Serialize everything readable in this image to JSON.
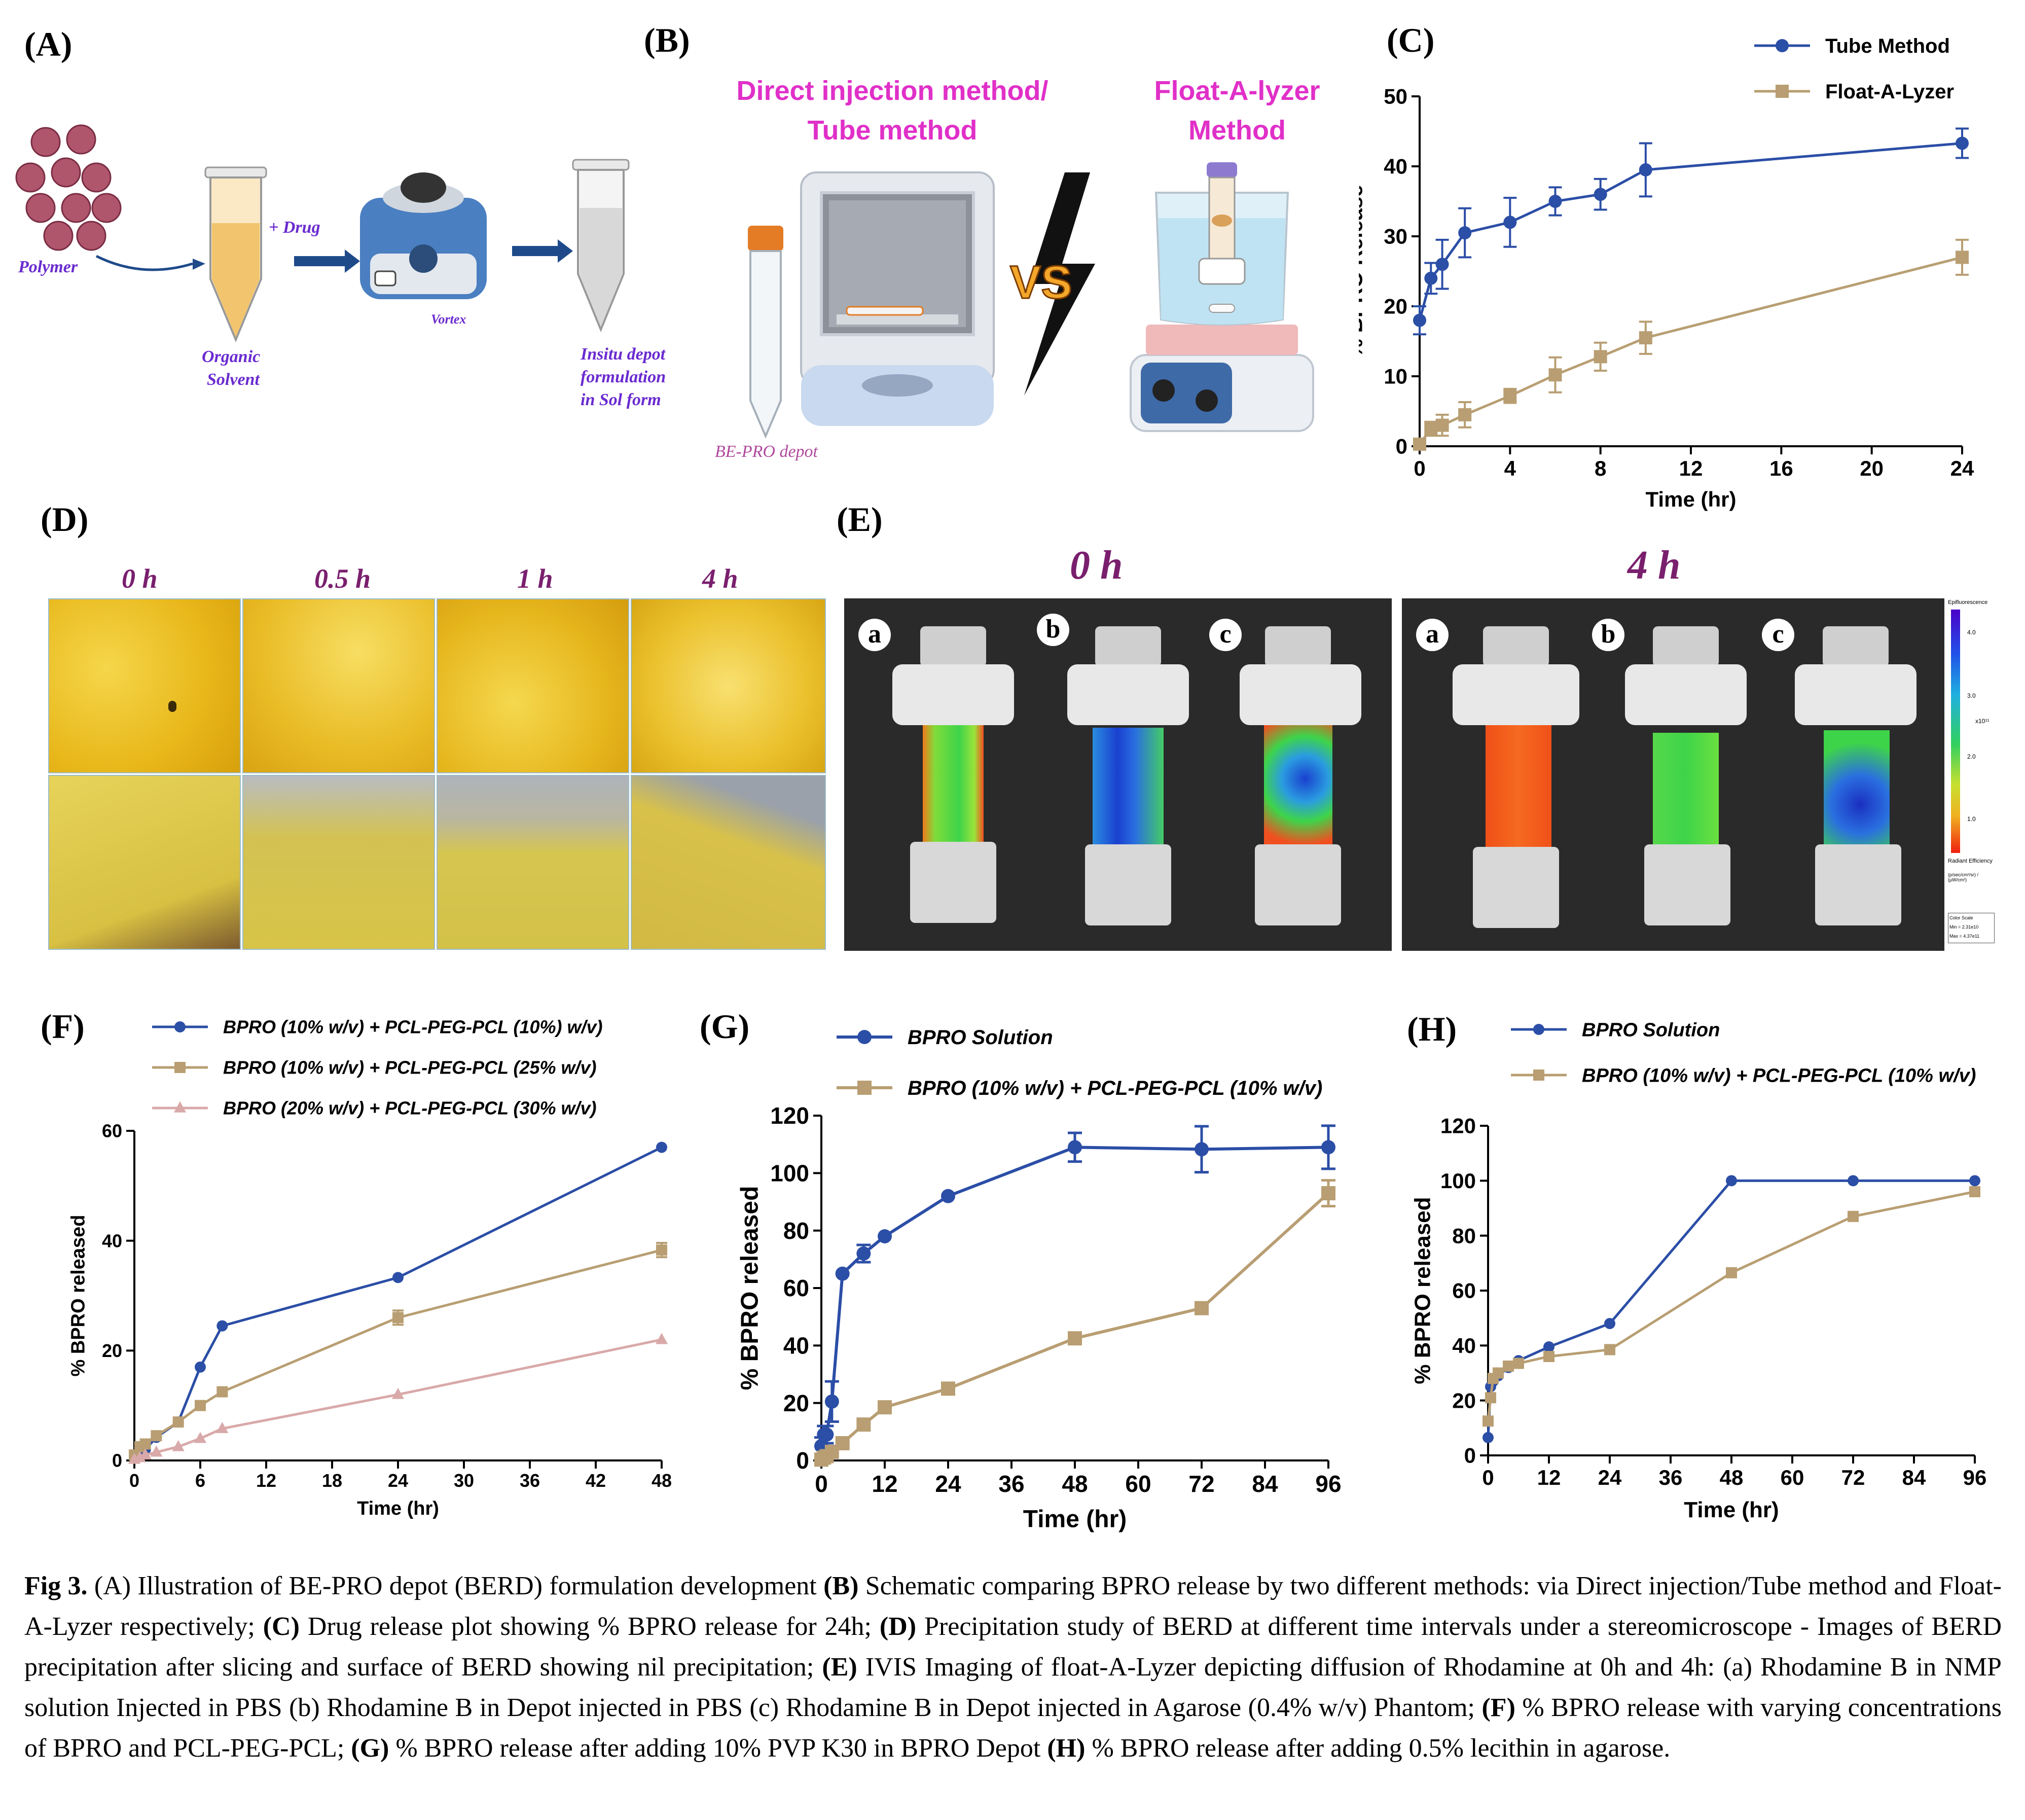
{
  "panels": {
    "A": {
      "letter": "(A)",
      "polymer": "Polymer",
      "drug": "+ Drug",
      "organic1": "Organic",
      "organic2": "Solvent",
      "vortex": "Vortex",
      "insitu1": "Insitu depot",
      "insitu2": "formulation",
      "insitu3": "in Sol form"
    },
    "B": {
      "letter": "(B)",
      "left_title1": "Direct injection method/",
      "left_title2": "Tube method",
      "right_title1": "Float-A-lyzer",
      "right_title2": "Method",
      "vs": "VS",
      "depot_label": "BE-PRO depot"
    },
    "D": {
      "letter": "(D)",
      "times": [
        "0 h",
        "0.5 h",
        "1 h",
        "4 h"
      ]
    },
    "E": {
      "letter": "(E)",
      "time_left": "0 h",
      "time_right": "4 h",
      "tubes": [
        "a",
        "b",
        "c"
      ],
      "scale_title": "Epifluorescence",
      "scale_ticks": [
        "4.0",
        "3.0",
        "2.0",
        "1.0"
      ],
      "scale_exp": "x10¹¹",
      "scale_unit": "Radiant Efficiency",
      "scale_unit2": "(p/sec/cm²/sr) / (µW/cm²)",
      "scale_box1": "Color Scale",
      "scale_box2": "Min = 2.31e10",
      "scale_box3": "Max = 4.37e11"
    },
    "C": {
      "letter": "(C)"
    },
    "F": {
      "letter": "(F)"
    },
    "G": {
      "letter": "(G)"
    },
    "H": {
      "letter": "(H)"
    }
  },
  "caption": {
    "fig": "Fig 3.",
    "a": " (A) Illustration of  BE-PRO depot (BERD) formulation development ",
    "b_lbl": "(B)",
    "b": " Schematic comparing BPRO release by two different methods: via Direct injection/Tube method and Float-A-Lyzer respectively; ",
    "c_lbl": "(C)",
    "c": " Drug release plot showing % BPRO release for 24h; ",
    "d_lbl": "(D)",
    "d": " Precipitation study of BERD at different time intervals under a stereomicroscope - Images of BERD precipitation after slicing and surface of BERD showing nil precipitation; ",
    "e_lbl": "(E)",
    "e": " IVIS Imaging of float-A-Lyzer depicting diffusion of Rhodamine at 0h and 4h: (a) Rhodamine B in NMP solution Injected in PBS (b) Rhodamine B in Depot injected in PBS (c) Rhodamine B in Depot injected in Agarose (0.4% w/v) Phantom; ",
    "f_lbl": "(F)",
    "f": " % BPRO release with varying concentrations of BPRO and PCL-PEG-PCL; ",
    "g_lbl": "(G)",
    "g": " % BPRO release after adding 10% PVP K30 in BPRO Depot  ",
    "h_lbl": "(H)",
    "h": " % BPRO release after adding 0.5% lecithin in agarose."
  },
  "chart_data": [
    {
      "id": "C",
      "type": "line",
      "xlabel": "Time (hr)",
      "ylabel": "% BPRO Release",
      "xlim": [
        0,
        24
      ],
      "ylim": [
        0,
        50
      ],
      "xticks": [
        0,
        4,
        8,
        12,
        16,
        20,
        24
      ],
      "yticks": [
        0,
        10,
        20,
        30,
        40,
        50
      ],
      "legend_position": "top-right",
      "series": [
        {
          "name": "Tube Method",
          "color": "#2b4ea6",
          "marker": "circle",
          "x": [
            0,
            0.5,
            1,
            2,
            4,
            6,
            8,
            10,
            24
          ],
          "y": [
            18,
            24,
            26,
            30.5,
            32,
            35,
            36,
            39.5,
            43.3
          ],
          "err": [
            2,
            2.2,
            3.5,
            3.5,
            3.5,
            2,
            2.2,
            3.8,
            2.1
          ]
        },
        {
          "name": "Float-A-Lyzer",
          "color": "#b89e72",
          "marker": "square",
          "x": [
            0,
            0.5,
            1,
            2,
            4,
            6,
            8,
            10,
            24
          ],
          "y": [
            0.3,
            2.5,
            3,
            4.5,
            7.2,
            10.2,
            12.8,
            15.5,
            27
          ],
          "err": [
            0.3,
            1,
            1.5,
            1.8,
            1,
            2.5,
            2,
            2.3,
            2.5
          ]
        }
      ]
    },
    {
      "id": "F",
      "type": "line",
      "xlabel": "Time (hr)",
      "ylabel": "% BPRO released",
      "xlim": [
        0,
        48
      ],
      "ylim": [
        0,
        60
      ],
      "xticks": [
        0,
        6,
        12,
        18,
        24,
        30,
        36,
        42,
        48
      ],
      "yticks": [
        0,
        20,
        40,
        60
      ],
      "legend_position": "top",
      "series": [
        {
          "name": "BPRO (10% w/v) + PCL-PEG-PCL (10%) w/v)",
          "color": "#2b4ea6",
          "marker": "circle",
          "x": [
            0,
            0.5,
            1,
            2,
            4,
            6,
            8,
            24,
            48
          ],
          "y": [
            0.5,
            1.2,
            2,
            4.2,
            7,
            17,
            24.5,
            33.3,
            57
          ],
          "err": [
            0,
            0,
            0,
            0,
            0,
            0,
            0,
            0,
            0
          ]
        },
        {
          "name": "BPRO (10% w/v) + PCL-PEG-PCL (25% w/v)",
          "color": "#b89e72",
          "marker": "square",
          "x": [
            0,
            0.5,
            1,
            2,
            4,
            6,
            8,
            24,
            48
          ],
          "y": [
            1,
            2.5,
            3,
            4.5,
            7,
            10,
            12.5,
            26,
            38.3
          ],
          "err": [
            0,
            0,
            0,
            0,
            0,
            0,
            0,
            1.3,
            1.3
          ]
        },
        {
          "name": "BPRO (20% w/v) + PCL-PEG-PCL (30% w/v)",
          "color": "#d9a9a9",
          "marker": "triangle",
          "x": [
            0,
            0.5,
            1,
            2,
            4,
            6,
            8,
            24,
            48
          ],
          "y": [
            0.2,
            0.5,
            1,
            1.5,
            2.5,
            4,
            5.8,
            12,
            22
          ],
          "err": [
            0,
            0,
            0,
            0,
            0,
            0,
            0,
            0,
            0
          ]
        }
      ]
    },
    {
      "id": "G",
      "type": "line",
      "xlabel": "Time (hr)",
      "ylabel": "% BPRO released",
      "xlim": [
        0,
        96
      ],
      "ylim": [
        0,
        120
      ],
      "xticks": [
        0,
        12,
        24,
        36,
        48,
        60,
        72,
        84,
        96
      ],
      "yticks": [
        0,
        20,
        40,
        60,
        80,
        100,
        120
      ],
      "legend_position": "top",
      "series": [
        {
          "name": "BPRO Solution",
          "color": "#2b4ea6",
          "marker": "circle",
          "x": [
            0,
            0.5,
            1,
            2,
            4,
            8,
            12,
            24,
            48,
            72,
            96
          ],
          "y": [
            5,
            9,
            9,
            20.5,
            65,
            72,
            78,
            92,
            109,
            108.3,
            109
          ],
          "err": [
            3,
            3,
            3,
            7,
            0,
            3,
            0,
            0,
            5,
            8,
            7.5
          ]
        },
        {
          "name": "BPRO (10% w/v) + PCL-PEG-PCL (10% w/v)",
          "color": "#b89e72",
          "marker": "square",
          "x": [
            0,
            0.5,
            1,
            2,
            4,
            8,
            12,
            24,
            48,
            72,
            96
          ],
          "y": [
            0.3,
            1,
            1.5,
            3,
            6,
            12.5,
            18.5,
            25,
            42.5,
            53,
            93
          ],
          "err": [
            0,
            0,
            0,
            0,
            0,
            0,
            0,
            0,
            0,
            0,
            4.5
          ]
        }
      ]
    },
    {
      "id": "H",
      "type": "line",
      "xlabel": "Time (hr)",
      "ylabel": "% BPRO released",
      "xlim": [
        0,
        96
      ],
      "ylim": [
        0,
        120
      ],
      "xticks": [
        0,
        12,
        24,
        36,
        48,
        60,
        72,
        84,
        96
      ],
      "yticks": [
        0,
        20,
        40,
        60,
        80,
        100,
        120
      ],
      "legend_position": "top",
      "series": [
        {
          "name": "BPRO Solution",
          "color": "#2b4ea6",
          "marker": "circle",
          "x": [
            0,
            0.5,
            1,
            2,
            4,
            6,
            12,
            24,
            48,
            72,
            96
          ],
          "y": [
            6.5,
            25,
            27,
            29,
            32,
            34.5,
            39.5,
            48,
            100,
            100,
            100
          ],
          "err": [
            0,
            0,
            0,
            0,
            0,
            0,
            0,
            0,
            0,
            0,
            0
          ]
        },
        {
          "name": "BPRO (10% w/v) + PCL-PEG-PCL (10% w/v)",
          "color": "#b89e72",
          "marker": "square",
          "x": [
            0,
            0.5,
            1,
            2,
            4,
            6,
            12,
            24,
            48,
            72,
            96
          ],
          "y": [
            12.5,
            21,
            28,
            30,
            32.5,
            33.5,
            36,
            38.5,
            66.5,
            87,
            96
          ],
          "err": [
            0,
            0,
            0,
            0,
            0,
            0,
            0,
            0,
            1.5,
            0,
            0
          ]
        }
      ]
    }
  ]
}
